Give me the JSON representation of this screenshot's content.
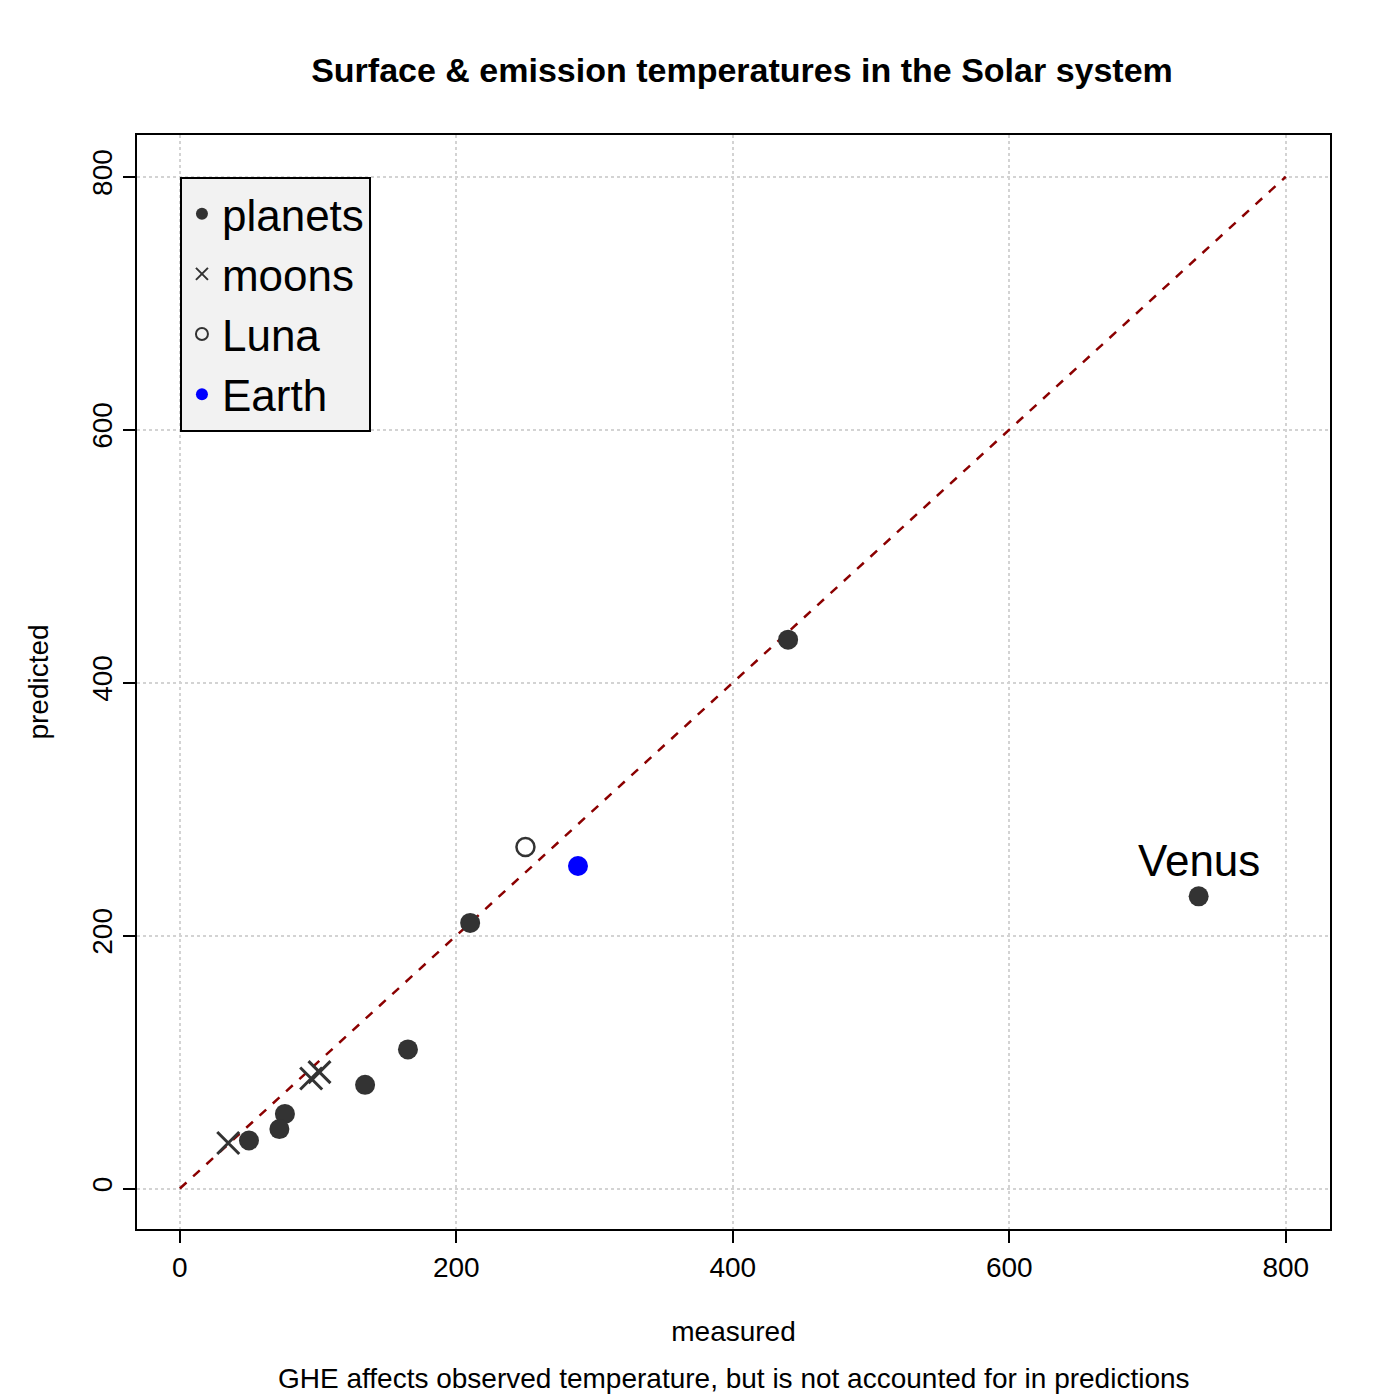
{
  "chart_data": {
    "type": "scatter",
    "title": "Surface & emission temperatures in the Solar system",
    "x_label": "measured",
    "y_label": "predicted",
    "subtitle": "GHE affects observed temperature, but is not accounted for in predictions",
    "xlim": [
      -31,
      832
    ],
    "ylim": [
      -32,
      833
    ],
    "xticks": [
      0,
      200,
      400,
      600,
      800
    ],
    "yticks": [
      0,
      200,
      400,
      600,
      800
    ],
    "grid": true,
    "legend": "top-left",
    "identity_line": {
      "x": [
        0,
        800
      ],
      "y": [
        0,
        800
      ],
      "color": "#8b0000",
      "line_style": "dash"
    },
    "series": [
      {
        "name": "planets",
        "color": "#333333",
        "marker": "circle",
        "x": [
          440,
          737,
          210,
          165,
          134,
          76,
          72,
          50
        ],
        "y": [
          434,
          231,
          210,
          110,
          82,
          59,
          47,
          38
        ]
      },
      {
        "name": "moons",
        "color": "#333333",
        "marker": "x",
        "x": [
          35,
          95,
          101
        ],
        "y": [
          36,
          87,
          92
        ]
      },
      {
        "name": "Luna",
        "color": "#333333",
        "marker": "open_circle",
        "x": [
          250
        ],
        "y": [
          270
        ]
      },
      {
        "name": "Earth",
        "color": "#0000ff",
        "marker": "circle",
        "x": [
          288
        ],
        "y": [
          255
        ]
      }
    ],
    "annotations": [
      {
        "text": "Venus",
        "x": 737,
        "y": 231
      }
    ]
  }
}
